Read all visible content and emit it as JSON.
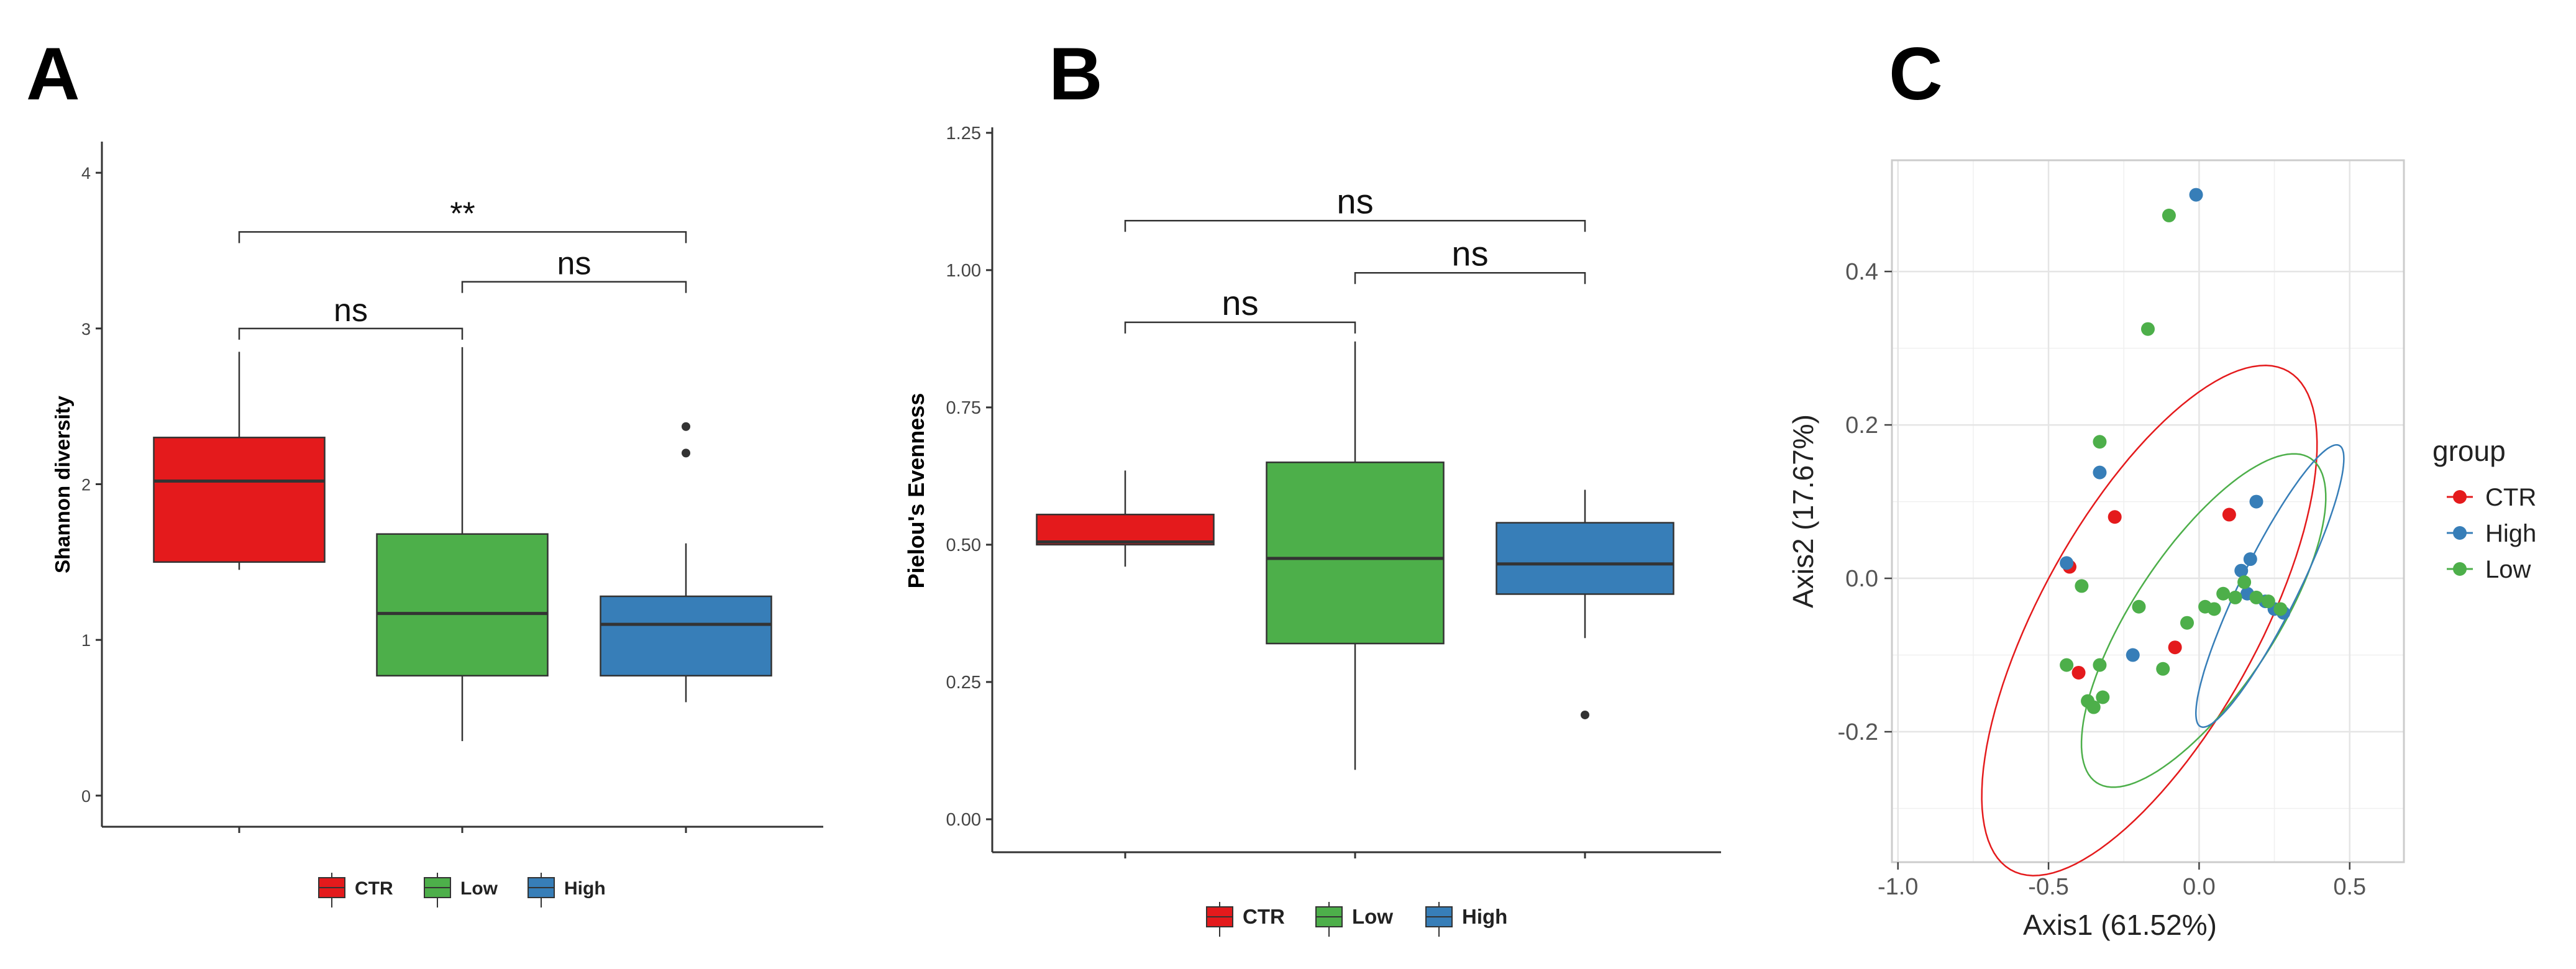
{
  "colors": {
    "CTR": "#E41A1C",
    "Low": "#4DAF4A",
    "High": "#377EB8",
    "box_line": "#333333",
    "axis": "#333333",
    "grid": "#E5E5E5",
    "panel_border": "#CCCCCC"
  },
  "chart_data": [
    {
      "type": "box",
      "panel_label": "A",
      "ylabel": "Shannon diversity",
      "xlabel": "",
      "ylim": [
        -0.2,
        4.2
      ],
      "yticks": [
        0,
        1,
        2,
        3,
        4
      ],
      "tick_labels": [
        "0",
        "1",
        "2",
        "3",
        "4"
      ],
      "legend_position": "bottom",
      "legend": [
        "CTR",
        "Low",
        "High"
      ],
      "boxes": [
        {
          "group": "CTR",
          "min": 1.45,
          "q1": 1.5,
          "median": 2.02,
          "q3": 2.3,
          "max": 2.85,
          "outliers": []
        },
        {
          "group": "Low",
          "min": 0.35,
          "q1": 0.77,
          "median": 1.17,
          "q3": 1.68,
          "max": 2.88,
          "outliers": []
        },
        {
          "group": "High",
          "min": 0.6,
          "q1": 0.77,
          "median": 1.1,
          "q3": 1.28,
          "max": 1.62,
          "outliers": [
            2.2,
            2.37
          ]
        }
      ],
      "comparisons": [
        {
          "from": "CTR",
          "to": "Low",
          "y": 3.0,
          "label": "ns"
        },
        {
          "from": "Low",
          "to": "High",
          "y": 3.3,
          "label": "ns"
        },
        {
          "from": "CTR",
          "to": "High",
          "y": 3.62,
          "label": "**"
        }
      ]
    },
    {
      "type": "box",
      "panel_label": "B",
      "ylabel": "Pielou's Evenness",
      "xlabel": "",
      "ylim": [
        -0.06,
        1.26
      ],
      "yticks": [
        0,
        0.25,
        0.5,
        0.75,
        1.0,
        1.25
      ],
      "tick_labels": [
        "0.00",
        "0.25",
        "0.50",
        "0.75",
        "1.00",
        "1.25"
      ],
      "legend_position": "bottom",
      "legend": [
        "CTR",
        "Low",
        "High"
      ],
      "boxes": [
        {
          "group": "CTR",
          "min": 0.46,
          "q1": 0.5,
          "median": 0.505,
          "q3": 0.555,
          "max": 0.635,
          "outliers": []
        },
        {
          "group": "Low",
          "min": 0.09,
          "q1": 0.32,
          "median": 0.475,
          "q3": 0.65,
          "max": 0.87,
          "outliers": []
        },
        {
          "group": "High",
          "min": 0.33,
          "q1": 0.41,
          "median": 0.465,
          "q3": 0.54,
          "max": 0.6,
          "outliers": [
            0.19
          ]
        }
      ],
      "comparisons": [
        {
          "from": "CTR",
          "to": "Low",
          "y": 0.905,
          "label": "ns"
        },
        {
          "from": "Low",
          "to": "High",
          "y": 0.995,
          "label": "ns"
        },
        {
          "from": "CTR",
          "to": "High",
          "y": 1.09,
          "label": "ns"
        }
      ]
    },
    {
      "type": "scatter",
      "panel_label": "C",
      "xlabel": "Axis1 (61.52%)",
      "ylabel": "Axis2 (17.67%)",
      "xlim": [
        -1.02,
        0.68
      ],
      "ylim": [
        -0.37,
        0.545
      ],
      "xticks": [
        -1.0,
        -0.5,
        0.0,
        0.5
      ],
      "xtick_labels": [
        "-1.0",
        "-0.5",
        "0.0",
        "0.5"
      ],
      "yticks": [
        -0.2,
        0.0,
        0.2,
        0.4
      ],
      "ytick_labels": [
        "-0.2",
        "0.0",
        "0.2",
        "0.4"
      ],
      "grid": true,
      "legend_title": "group",
      "legend_position": "right",
      "legend": [
        "CTR",
        "High",
        "Low"
      ],
      "series": [
        {
          "name": "CTR",
          "points": [
            [
              -0.43,
              0.015
            ],
            [
              -0.28,
              0.08
            ],
            [
              0.1,
              0.083
            ],
            [
              -0.4,
              -0.123
            ],
            [
              -0.08,
              -0.09
            ]
          ]
        },
        {
          "name": "High",
          "points": [
            [
              -0.01,
              0.5
            ],
            [
              -0.33,
              0.138
            ],
            [
              -0.44,
              0.02
            ],
            [
              0.19,
              0.1
            ],
            [
              0.17,
              0.025
            ],
            [
              0.14,
              0.01
            ],
            [
              0.16,
              -0.02
            ],
            [
              0.22,
              -0.03
            ],
            [
              0.25,
              -0.04
            ],
            [
              0.28,
              -0.045
            ],
            [
              -0.22,
              -0.1
            ]
          ]
        },
        {
          "name": "Low",
          "points": [
            [
              -0.1,
              0.473
            ],
            [
              -0.17,
              0.325
            ],
            [
              -0.33,
              0.178
            ],
            [
              -0.39,
              -0.01
            ],
            [
              -0.2,
              -0.037
            ],
            [
              -0.44,
              -0.113
            ],
            [
              -0.33,
              -0.113
            ],
            [
              -0.37,
              -0.16
            ],
            [
              -0.32,
              -0.155
            ],
            [
              -0.35,
              -0.168
            ],
            [
              -0.12,
              -0.118
            ],
            [
              -0.04,
              -0.058
            ],
            [
              0.02,
              -0.037
            ],
            [
              0.05,
              -0.04
            ],
            [
              0.08,
              -0.02
            ],
            [
              0.12,
              -0.025
            ],
            [
              0.15,
              -0.005
            ],
            [
              0.19,
              -0.025
            ],
            [
              0.23,
              -0.03
            ],
            [
              0.27,
              -0.04
            ]
          ]
        }
      ],
      "ellipses": [
        {
          "group": "CTR",
          "cx": -0.165,
          "cy": -0.055,
          "rx": 0.61,
          "ry": 0.22,
          "angle_deg": 26
        },
        {
          "group": "Low",
          "cx": 0.015,
          "cy": -0.055,
          "rx": 0.44,
          "ry": 0.135,
          "angle_deg": 24
        },
        {
          "group": "High",
          "cx": 0.235,
          "cy": -0.01,
          "rx": 0.3,
          "ry": 0.065,
          "angle_deg": 36
        }
      ]
    }
  ]
}
